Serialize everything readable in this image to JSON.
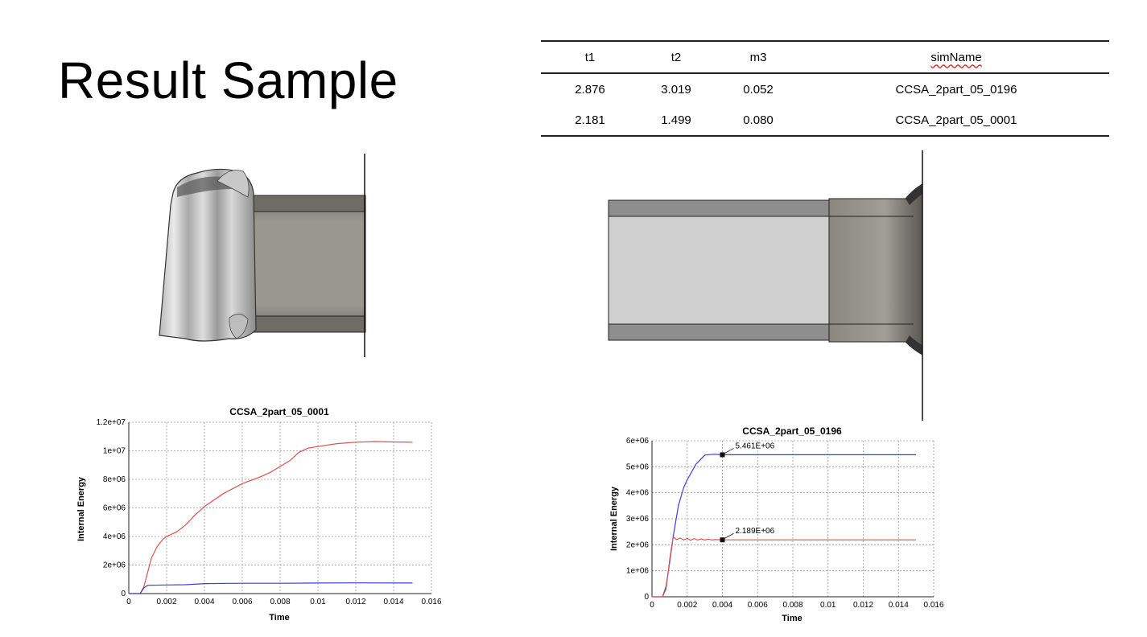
{
  "slide": {
    "title": "Result Sample"
  },
  "table": {
    "headers": [
      "t1",
      "t2",
      "m3",
      "simName"
    ],
    "rows": [
      [
        "2.876",
        "3.019",
        "0.052",
        "CCSA_2part_05_0196"
      ],
      [
        "2.181",
        "1.499",
        "0.080",
        "CCSA_2part_05_0001"
      ]
    ]
  },
  "colors": {
    "red_series": "#d9534f",
    "blue_series": "#3b3fd6",
    "grid": "#999999"
  },
  "chart_data": [
    {
      "type": "line",
      "title": "CCSA_2part_05_0001",
      "xlabel": "Time",
      "ylabel": "Internal Energy",
      "xlim": [
        0,
        0.016
      ],
      "ylim": [
        0,
        12000000
      ],
      "xticks": [
        "0",
        "0.002",
        "0.004",
        "0.006",
        "0.008",
        "0.01",
        "0.012",
        "0.014",
        "0.016"
      ],
      "yticks": [
        "0",
        "2e+06",
        "4e+06",
        "6e+06",
        "8e+06",
        "1e+07",
        "1.2e+07"
      ],
      "grid": true,
      "series": [
        {
          "color": "#d9534f",
          "x": [
            0,
            0.0006,
            0.0008,
            0.001,
            0.0012,
            0.0015,
            0.0018,
            0.002,
            0.0025,
            0.003,
            0.0035,
            0.004,
            0.005,
            0.006,
            0.007,
            0.0075,
            0.008,
            0.0085,
            0.009,
            0.0095,
            0.01,
            0.011,
            0.012,
            0.013,
            0.014,
            0.015
          ],
          "y": [
            0,
            0,
            500000,
            1500000,
            2500000,
            3300000,
            3800000,
            4000000,
            4300000,
            4800000,
            5500000,
            6100000,
            7000000,
            7700000,
            8200000,
            8500000,
            8900000,
            9300000,
            9900000,
            10200000,
            10300000,
            10500000,
            10600000,
            10650000,
            10620000,
            10600000
          ]
        },
        {
          "color": "#3b3fd6",
          "x": [
            0,
            0.0006,
            0.0008,
            0.001,
            0.002,
            0.003,
            0.004,
            0.006,
            0.008,
            0.01,
            0.012,
            0.015
          ],
          "y": [
            0,
            0,
            400000,
            580000,
            600000,
            620000,
            700000,
            720000,
            720000,
            740000,
            750000,
            740000
          ]
        }
      ]
    },
    {
      "type": "line",
      "title": "CCSA_2part_05_0196",
      "xlabel": "Time",
      "ylabel": "Internal Energy",
      "xlim": [
        0,
        0.016
      ],
      "ylim": [
        0,
        6000000
      ],
      "xticks": [
        "0",
        "0.002",
        "0.004",
        "0.006",
        "0.008",
        "0.01",
        "0.012",
        "0.014",
        "0.016"
      ],
      "yticks": [
        "0",
        "1e+06",
        "2e+06",
        "3e+06",
        "4e+06",
        "5e+06",
        "6e+06"
      ],
      "grid": true,
      "series": [
        {
          "color": "#3b3fd6",
          "x": [
            0,
            0.0006,
            0.0008,
            0.001,
            0.0012,
            0.0015,
            0.0018,
            0.002,
            0.0025,
            0.003,
            0.0035,
            0.004,
            0.006,
            0.008,
            0.01,
            0.012,
            0.015
          ],
          "y": [
            0,
            0,
            400000,
            1300000,
            2300000,
            3500000,
            4200000,
            4500000,
            5100000,
            5450000,
            5480000,
            5461000,
            5461000,
            5461000,
            5461000,
            5461000,
            5461000
          ]
        },
        {
          "color": "#d9534f",
          "x": [
            0,
            0.0006,
            0.0008,
            0.001,
            0.0012,
            0.0014,
            0.0016,
            0.0018,
            0.002,
            0.0022,
            0.0024,
            0.0026,
            0.0028,
            0.003,
            0.0032,
            0.0034,
            0.0036,
            0.004,
            0.006,
            0.008,
            0.01,
            0.012,
            0.015
          ],
          "y": [
            0,
            0,
            300000,
            1400000,
            2300000,
            2200000,
            2260000,
            2180000,
            2250000,
            2170000,
            2240000,
            2180000,
            2230000,
            2180000,
            2220000,
            2185000,
            2200000,
            2189000,
            2189000,
            2189000,
            2189000,
            2189000,
            2189000
          ]
        }
      ],
      "annotations": [
        {
          "x": 0.004,
          "y": 5461000,
          "label": "5.461E+06"
        },
        {
          "x": 0.004,
          "y": 2189000,
          "label": "2.189E+06"
        }
      ]
    }
  ]
}
